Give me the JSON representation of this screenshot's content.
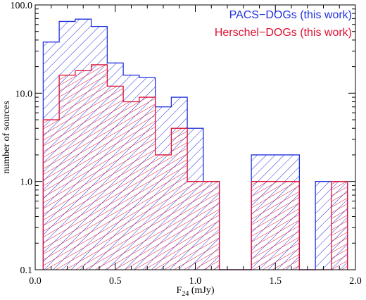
{
  "chart_data": {
    "type": "bar",
    "style": "step-histogram-hatched",
    "xlabel_main": "F",
    "xlabel_sub": "24",
    "xlabel_unit": " (mJy)",
    "ylabel": "number of sources",
    "xlim": [
      0.0,
      2.0
    ],
    "ylim": [
      0.1,
      100.0
    ],
    "yscale": "log",
    "xticks": [
      {
        "value": 0.0,
        "label": "0.0"
      },
      {
        "value": 0.5,
        "label": "0.5"
      },
      {
        "value": 1.0,
        "label": "1.0"
      },
      {
        "value": 1.5,
        "label": "1.5"
      },
      {
        "value": 2.0,
        "label": "2.0"
      }
    ],
    "yticks": [
      {
        "value": 0.1,
        "label": "0.1"
      },
      {
        "value": 1.0,
        "label": "1.0"
      },
      {
        "value": 10.0,
        "label": "10.0"
      },
      {
        "value": 100.0,
        "label": "100.0"
      }
    ],
    "bin_edges": [
      0.05,
      0.15,
      0.25,
      0.35,
      0.45,
      0.55,
      0.65,
      0.75,
      0.85,
      0.95,
      1.05,
      1.15,
      1.25,
      1.35,
      1.45,
      1.55,
      1.65,
      1.75,
      1.85,
      1.95
    ],
    "series": [
      {
        "name": "PACS−DOGs (this work)",
        "color": "#2233dd",
        "values": [
          38,
          65,
          69,
          57,
          22,
          16,
          15,
          7,
          9,
          4,
          1,
          0,
          0,
          2,
          2,
          2,
          0,
          1,
          1
        ]
      },
      {
        "name": "Herschel−DOGs (this work)",
        "color": "#dd1133",
        "values": [
          5,
          16,
          18,
          21,
          12,
          8,
          9,
          2,
          4,
          1,
          1,
          0,
          0,
          1,
          1,
          1,
          0,
          0,
          1
        ]
      }
    ],
    "legend_position": "top-right",
    "grid": false
  }
}
